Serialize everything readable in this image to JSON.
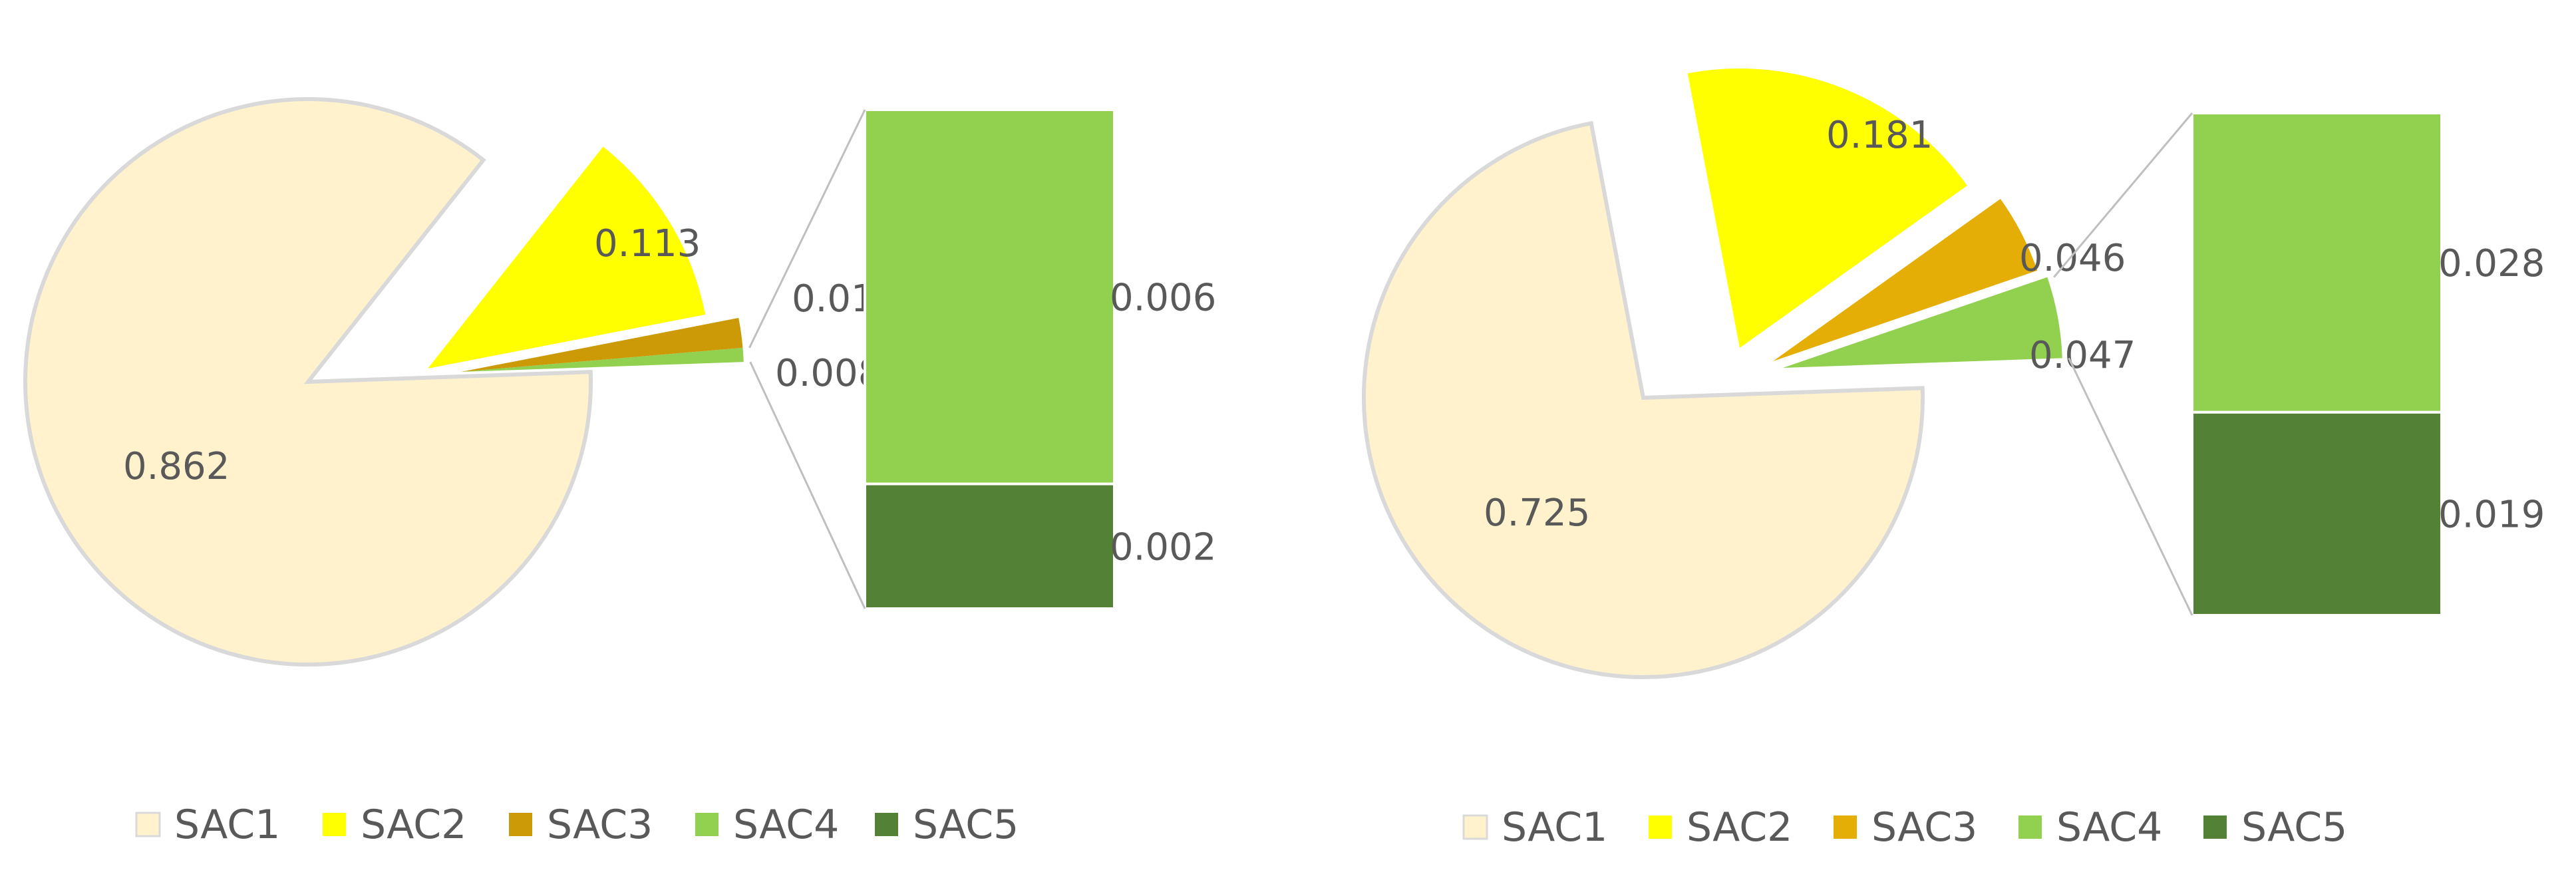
{
  "chart_data": [
    {
      "type": "bar-of-pie",
      "title": "",
      "series": [
        {
          "name": "SAC1",
          "value": 0.862,
          "label": "0.862",
          "color": "#FFF2CC"
        },
        {
          "name": "SAC2",
          "value": 0.113,
          "label": "0.113",
          "color": "#FFFF00"
        },
        {
          "name": "SAC3",
          "value": 0.017,
          "label": "0.017",
          "color": "#CC9A06"
        },
        {
          "name": "SAC4",
          "value": 0.008,
          "label": "0.008",
          "color": "#92D050"
        },
        {
          "name": "SAC5",
          "value": 0.002,
          "label": "0.002",
          "color": "#538135"
        }
      ],
      "bar_breakdown": [
        {
          "name": "SAC4",
          "value": 0.006,
          "label": "0.006",
          "color": "#92D050"
        },
        {
          "name": "SAC5",
          "value": 0.002,
          "label": "0.002",
          "color": "#538135"
        }
      ],
      "legend_position": "bottom"
    },
    {
      "type": "bar-of-pie",
      "title": "",
      "series": [
        {
          "name": "SAC1",
          "value": 0.725,
          "label": "0.725",
          "color": "#FFF2CC"
        },
        {
          "name": "SAC2",
          "value": 0.181,
          "label": "0.181",
          "color": "#FFFF00"
        },
        {
          "name": "SAC3",
          "value": 0.046,
          "label": "0.046",
          "color": "#E5AE06"
        },
        {
          "name": "SAC4",
          "value": 0.047,
          "label": "0.047",
          "color": "#92D050"
        },
        {
          "name": "SAC5",
          "value": 0.019,
          "label": "0.019",
          "color": "#538135"
        }
      ],
      "bar_breakdown": [
        {
          "name": "SAC4",
          "value": 0.028,
          "label": "0.028",
          "color": "#92D050"
        },
        {
          "name": "SAC5",
          "value": 0.019,
          "label": "0.019",
          "color": "#538135"
        }
      ],
      "legend_position": "bottom"
    }
  ]
}
